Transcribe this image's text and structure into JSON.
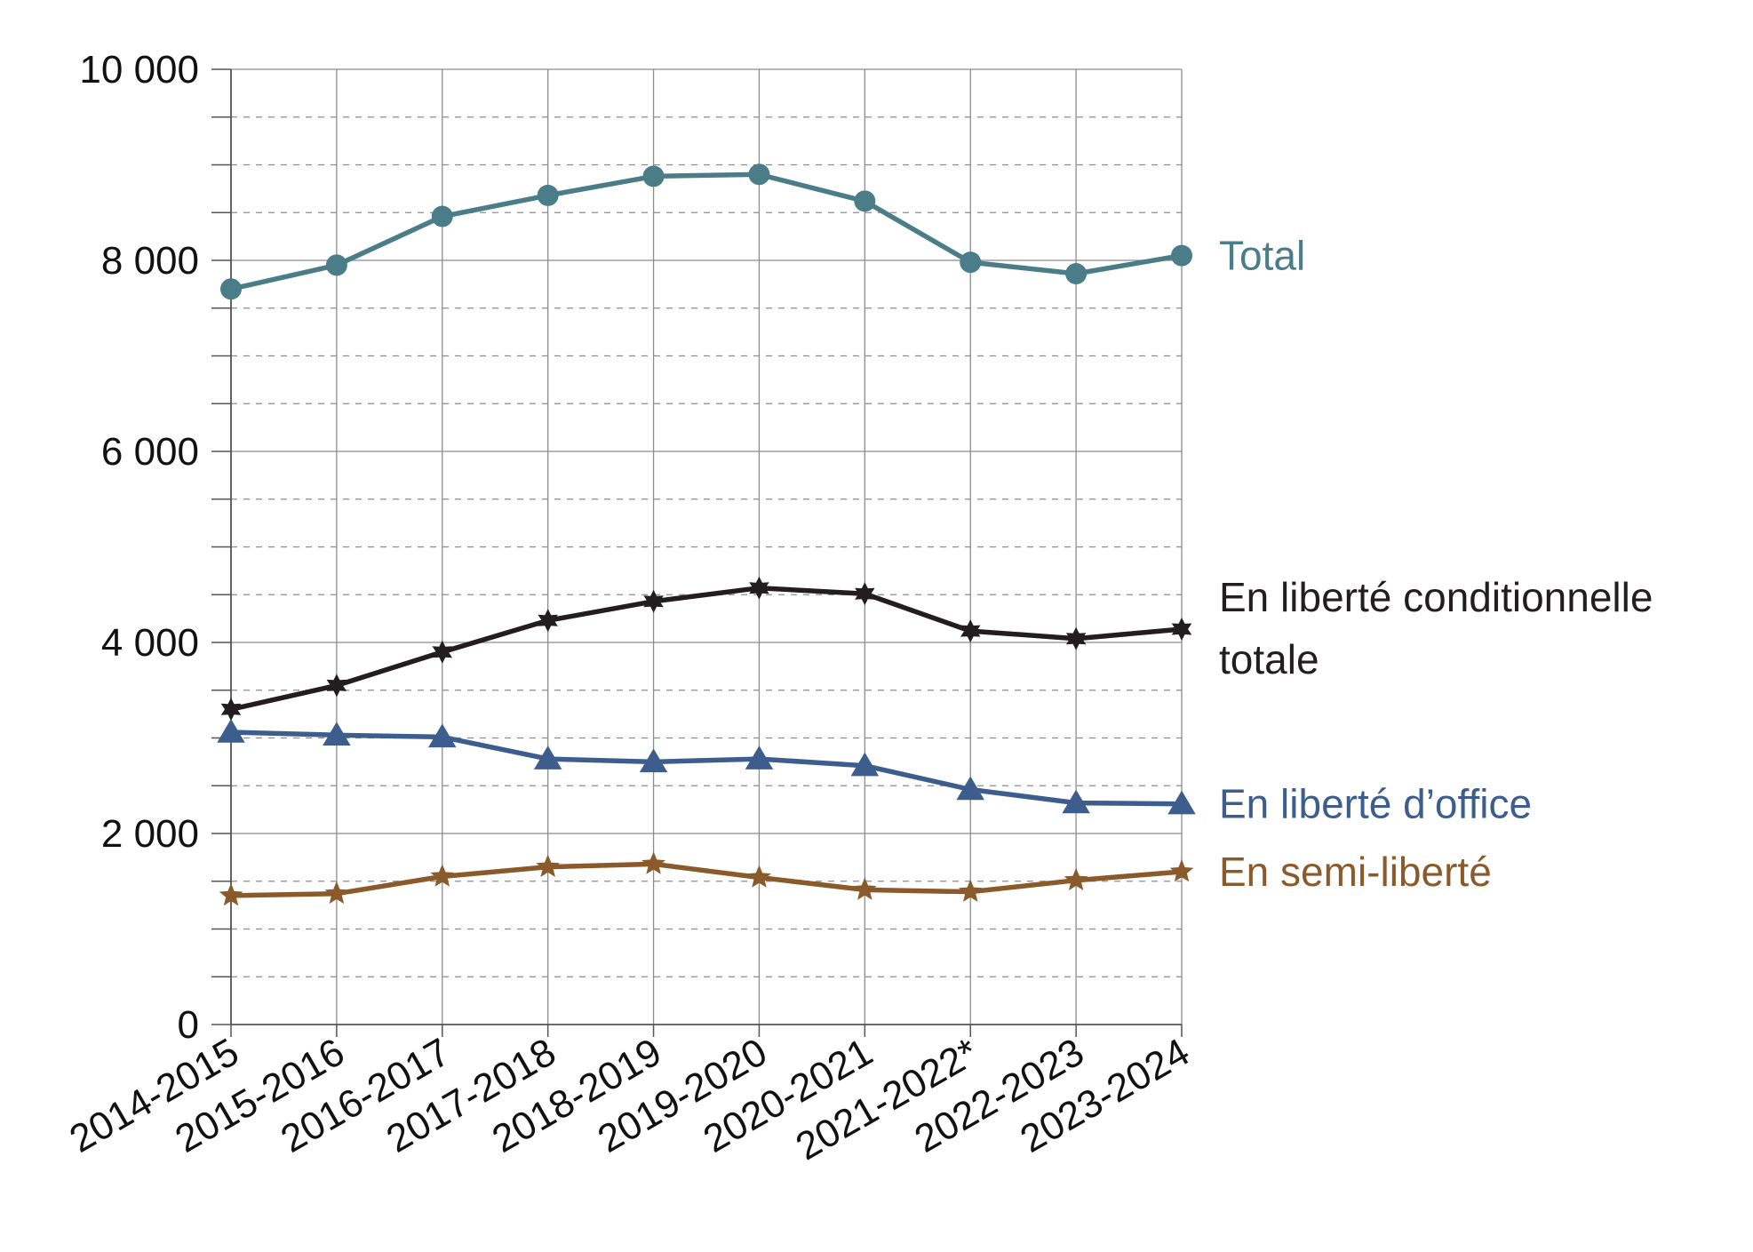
{
  "chart_data": {
    "type": "line",
    "title": "",
    "xlabel": "",
    "ylabel": "",
    "categories": [
      "2014-2015",
      "2015-2016",
      "2016-2017",
      "2017-2018",
      "2018-2019",
      "2019-2020",
      "2020-2021",
      "2021-2022*",
      "2022-2023",
      "2023-2024"
    ],
    "ylim": [
      0,
      10000
    ],
    "y_ticks": [
      {
        "value": 0,
        "label": "0"
      },
      {
        "value": 2000,
        "label": "2 000"
      },
      {
        "value": 4000,
        "label": "4 000"
      },
      {
        "value": 6000,
        "label": "6 000"
      },
      {
        "value": 8000,
        "label": "8 000"
      },
      {
        "value": 10000,
        "label": "10 000"
      }
    ],
    "y_minor_step": 500,
    "grid": true,
    "legend": "direct labels at right end of each line",
    "series": [
      {
        "name": "Total",
        "label_lines": [
          "Total"
        ],
        "color": "#4a7d87",
        "marker": "circle",
        "values": [
          7700,
          7950,
          8460,
          8680,
          8880,
          8900,
          8620,
          7980,
          7860,
          8050
        ]
      },
      {
        "name": "En liberté conditionnelle totale",
        "label_lines": [
          "En liberté conditionnelle",
          "totale"
        ],
        "color": "#221e20",
        "marker": "star6",
        "values": [
          3300,
          3550,
          3900,
          4230,
          4430,
          4570,
          4510,
          4120,
          4040,
          4140
        ]
      },
      {
        "name": "En liberté d’office",
        "label_lines": [
          "En liberté d’office"
        ],
        "color": "#3d5e8c",
        "marker": "triangle",
        "values": [
          3060,
          3030,
          3010,
          2780,
          2750,
          2780,
          2710,
          2460,
          2320,
          2310
        ]
      },
      {
        "name": "En semi-liberté",
        "label_lines": [
          "En semi-liberté"
        ],
        "color": "#8b5a2b",
        "marker": "star5",
        "values": [
          1350,
          1370,
          1550,
          1650,
          1680,
          1540,
          1410,
          1390,
          1510,
          1600
        ]
      }
    ]
  }
}
